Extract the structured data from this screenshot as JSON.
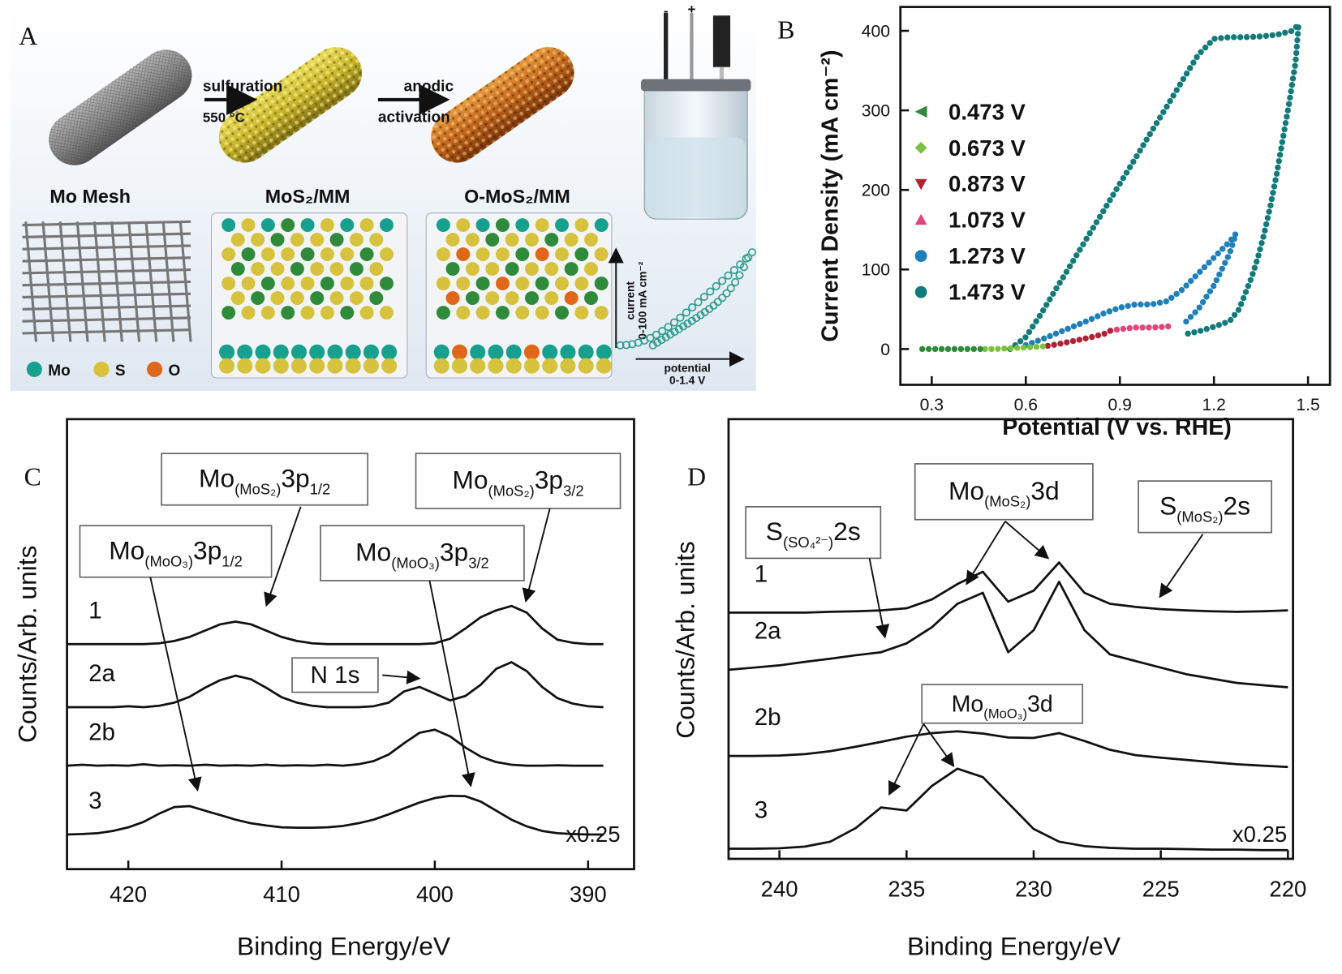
{
  "schematic": {
    "panel_label": "A",
    "mesh": "Mo Mesh",
    "step1": [
      "sulfuration",
      "550 °C"
    ],
    "step2": [
      "anodic",
      "activation"
    ],
    "sample1": "MoS₂/MM",
    "sample2": "O-MoS₂/MM",
    "atoms": [
      "Mo",
      "S",
      "O"
    ],
    "inset_y": [
      "current",
      "0-100 mA cm⁻²"
    ],
    "inset_x": [
      "potential",
      "0-1.4 V"
    ],
    "electrodes": [
      "-",
      "+"
    ]
  },
  "chart_data": [
    {
      "type": "line",
      "panel_label": "B",
      "line_style": "dotted",
      "x_label": "Potential (V vs. RHE)",
      "y_label": "Current Density (mA cm⁻²)",
      "xlim": [
        0.2,
        1.57
      ],
      "ylim": [
        -45,
        430
      ],
      "xticks": [
        0.3,
        0.6,
        0.9,
        1.2,
        1.5
      ],
      "yticks": [
        0,
        100,
        200,
        300,
        400
      ],
      "legend": "upper left",
      "series": [
        {
          "name": "0.473 V",
          "color": "#2e8b3a",
          "marker": "triangle-left",
          "x": [
            0.27,
            0.3,
            0.35,
            0.4,
            0.45,
            0.47
          ],
          "values": [
            0,
            0,
            0,
            0,
            0,
            0
          ]
        },
        {
          "name": "0.673 V",
          "color": "#7cc242",
          "marker": "diamond",
          "x": [
            0.47,
            0.5,
            0.55,
            0.6,
            0.65,
            0.67
          ],
          "values": [
            0,
            0,
            1,
            2,
            3,
            4
          ]
        },
        {
          "name": "0.873 V",
          "color": "#b22234",
          "marker": "triangle-down",
          "x": [
            0.67,
            0.7,
            0.75,
            0.8,
            0.85,
            0.87
          ],
          "values": [
            4,
            6,
            10,
            14,
            19,
            23
          ]
        },
        {
          "name": "1.073 V",
          "color": "#e0457b",
          "marker": "triangle-up",
          "x": [
            0.87,
            0.9,
            0.95,
            1.0,
            1.05,
            1.07
          ],
          "values": [
            23,
            25,
            27,
            27,
            28,
            30
          ]
        },
        {
          "name": "1.273 V",
          "color": "#1f7fb8",
          "marker": "circle",
          "x": [
            0.6,
            0.65,
            0.7,
            0.75,
            0.8,
            0.85,
            0.9,
            0.95,
            1.0,
            1.05,
            1.1,
            1.15,
            1.2,
            1.25,
            1.27,
            1.25,
            1.2,
            1.15,
            1.1
          ],
          "values": [
            5,
            12,
            20,
            28,
            36,
            45,
            52,
            56,
            56,
            60,
            75,
            95,
            115,
            135,
            145,
            120,
            80,
            50,
            30
          ]
        },
        {
          "name": "1.473 V",
          "color": "#137a7a",
          "marker": "circle",
          "x": [
            0.55,
            0.6,
            0.65,
            0.7,
            0.75,
            0.8,
            0.85,
            0.9,
            0.95,
            1.0,
            1.05,
            1.1,
            1.15,
            1.2,
            1.25,
            1.3,
            1.35,
            1.4,
            1.45,
            1.47,
            1.46,
            1.44,
            1.42,
            1.4,
            1.38,
            1.36,
            1.34,
            1.32,
            1.3,
            1.28,
            1.25,
            1.2,
            1.15,
            1.1
          ],
          "values": [
            0,
            15,
            45,
            78,
            110,
            143,
            175,
            208,
            240,
            273,
            305,
            338,
            370,
            390,
            392,
            392,
            393,
            395,
            400,
            408,
            360,
            310,
            265,
            220,
            180,
            145,
            115,
            90,
            70,
            50,
            35,
            28,
            22,
            18
          ]
        }
      ]
    },
    {
      "type": "line",
      "panel_label": "C",
      "x_label": "Binding Energy/eV",
      "y_label": "Counts/Arb. units",
      "xlim": [
        424,
        387
      ],
      "ylim": [
        0,
        100
      ],
      "xticks": [
        420,
        410,
        400,
        390
      ],
      "x": [
        424,
        423,
        422,
        421,
        420,
        419,
        418,
        417,
        416,
        415,
        414,
        413,
        412,
        411,
        410,
        409,
        408,
        407,
        406,
        405,
        404,
        403,
        402,
        401,
        400,
        399,
        398,
        397,
        396,
        395,
        394,
        393,
        392,
        391,
        390,
        389
      ],
      "series": [
        {
          "name": "1",
          "color": "#111111",
          "values": [
            50,
            50,
            50,
            50,
            50,
            50,
            50.2,
            50.7,
            51.6,
            53,
            54.4,
            55,
            54.4,
            53,
            51.6,
            50.7,
            50.2,
            50,
            50,
            50,
            50,
            50,
            50,
            50,
            50.2,
            51.2,
            53.5,
            56,
            57.5,
            58.5,
            57,
            53.5,
            51,
            50.3,
            50,
            50
          ]
        },
        {
          "name": "2a",
          "color": "#111111",
          "values": [
            36,
            36,
            36,
            36,
            36.2,
            36,
            36.3,
            37,
            38.3,
            40.3,
            42,
            43,
            42.2,
            40.3,
            38.2,
            37,
            36.3,
            36,
            36,
            36,
            36.2,
            37,
            39.5,
            40.5,
            39,
            37.5,
            38.5,
            41,
            44.5,
            46,
            44,
            40.5,
            38,
            36.8,
            36.2,
            36
          ]
        },
        {
          "name": "2b",
          "color": "#111111",
          "values": [
            23,
            23.2,
            23,
            23.1,
            23,
            23.3,
            23,
            23.1,
            23,
            23.2,
            23,
            23.1,
            23,
            23.2,
            23,
            23.1,
            23,
            23.2,
            23,
            23.3,
            24,
            25.5,
            28,
            30.3,
            31,
            29.5,
            27,
            25,
            23.8,
            23.2,
            23,
            23,
            23.1,
            23,
            23,
            23
          ]
        },
        {
          "name": "3",
          "color": "#111111",
          "values": [
            7.7,
            7.8,
            8,
            8.5,
            9.3,
            10.5,
            12.3,
            13.8,
            14,
            13,
            12,
            11,
            10.2,
            9.7,
            9.3,
            9.2,
            9.2,
            9.3,
            9.6,
            10.2,
            11,
            12.2,
            13.5,
            14.8,
            15.8,
            16.3,
            16.2,
            15,
            13,
            11,
            9.5,
            8.5,
            8,
            7.8,
            7.7,
            7.7
          ]
        }
      ],
      "annotations": [
        {
          "parts": [
            "Mo",
            "(MoS₂)",
            "3p",
            "1/2"
          ]
        },
        {
          "parts": [
            "Mo",
            "(MoS₂)",
            "3p",
            "3/2"
          ]
        },
        {
          "parts": [
            "Mo",
            "(MoO₃)",
            "3p",
            "1/2"
          ]
        },
        {
          "parts": [
            "Mo",
            "(MoO₃)",
            "3p",
            "3/2"
          ]
        },
        {
          "parts": [
            "N 1s"
          ]
        },
        {
          "parts": [
            "x0.25"
          ]
        }
      ]
    },
    {
      "type": "line",
      "panel_label": "D",
      "x_label": "Binding Energy/eV",
      "y_label": "Counts/Arb. units",
      "xlim": [
        242,
        219.8
      ],
      "ylim": [
        0,
        100
      ],
      "xticks": [
        240,
        235,
        230,
        225,
        220
      ],
      "x": [
        242,
        241,
        240,
        239,
        238,
        237,
        236,
        235,
        234,
        233,
        232,
        231,
        230,
        229,
        228,
        227,
        226,
        225,
        224,
        223,
        222,
        221,
        220
      ],
      "series": [
        {
          "name": "1",
          "color": "#111111",
          "values": [
            56,
            56,
            56,
            56,
            56.2,
            56.3,
            56.5,
            57,
            59,
            62.5,
            65.3,
            58.5,
            61,
            67.4,
            60.5,
            58,
            57.3,
            56.8,
            56.5,
            56.3,
            56.2,
            56.3,
            56.5
          ]
        },
        {
          "name": "2a",
          "color": "#111111",
          "values": [
            43,
            43.5,
            44,
            44.8,
            45.5,
            46.3,
            47,
            49,
            52.7,
            58,
            60.5,
            47,
            52,
            63,
            52,
            46.5,
            45,
            43.5,
            42,
            41,
            40,
            39.5,
            39
          ]
        },
        {
          "name": "2b",
          "color": "#111111",
          "values": [
            23.4,
            23.4,
            23.5,
            23.8,
            24.5,
            25.5,
            26.6,
            27.8,
            28.6,
            29,
            28.5,
            27.6,
            27.5,
            28.6,
            26.8,
            24.8,
            23.6,
            23,
            22.5,
            22,
            21.5,
            21.2,
            20.9
          ]
        },
        {
          "name": "3",
          "color": "#111111",
          "values": [
            2.3,
            2.3,
            2.4,
            2.8,
            3.9,
            7,
            11.7,
            11,
            16.6,
            20.5,
            18.6,
            12.7,
            6.8,
            3.9,
            2.9,
            2.5,
            2.3,
            2.3,
            2.2,
            2.1,
            2.1,
            2,
            2
          ]
        }
      ],
      "annotations": [
        {
          "parts": [
            "S",
            "(SO₄²⁻)",
            "2s"
          ]
        },
        {
          "parts": [
            "Mo",
            "(MoS₂)",
            "3d"
          ]
        },
        {
          "parts": [
            "S",
            "(MoS₂)",
            "2s"
          ]
        },
        {
          "parts": [
            "Mo",
            "(MoO₃)",
            "3d"
          ]
        },
        {
          "parts": [
            "x0.25"
          ]
        }
      ]
    }
  ]
}
